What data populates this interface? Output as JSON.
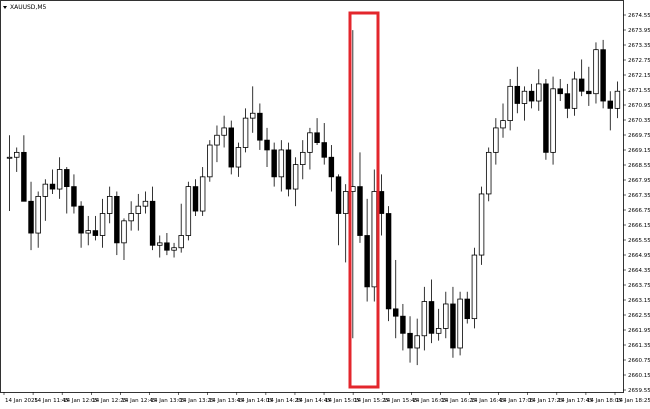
{
  "window": {
    "symbol_label": "XAUUSD,M5"
  },
  "chart_data": {
    "type": "candlestick",
    "title": "XAUUSD,M5",
    "ylim": [
      2659.0,
      2674.5
    ],
    "y_ticks": [
      "2674.55",
      "2673.95",
      "2673.35",
      "2672.75",
      "2672.15",
      "2671.55",
      "2670.95",
      "2670.35",
      "2669.75",
      "2669.15",
      "2668.55",
      "2667.95",
      "2667.35",
      "2666.75",
      "2666.15",
      "2665.55",
      "2664.95",
      "2664.35",
      "2663.75",
      "2663.15",
      "2662.55",
      "2661.95",
      "2661.35",
      "2660.75",
      "2660.15",
      "2659.55"
    ],
    "x_ticks": [
      "14 Jan 2025",
      "14 Jan 11:45",
      "14 Jan 12:05",
      "14 Jan 12:25",
      "14 Jan 12:45",
      "14 Jan 13:05",
      "14 Jan 13:25",
      "14 Jan 13:45",
      "14 Jan 14:05",
      "14 Jan 14:25",
      "14 Jan 14:45",
      "14 Jan 15:05",
      "14 Jan 15:25",
      "14 Jan 15:45",
      "14 Jan 16:05",
      "14 Jan 16:25",
      "14 Jan 16:45",
      "14 Jan 17:05",
      "14 Jan 17:25",
      "14 Jan 17:45",
      "14 Jan 18:05",
      "14 Jan 18:25"
    ],
    "candles": [
      [
        2668.6,
        2669.5,
        2666.4,
        2668.6
      ],
      [
        2668.6,
        2669.0,
        2668.0,
        2668.8
      ],
      [
        2668.8,
        2669.5,
        2666.8,
        2666.8
      ],
      [
        2666.8,
        2667.6,
        2664.8,
        2665.5
      ],
      [
        2665.5,
        2667.2,
        2664.9,
        2667.0
      ],
      [
        2667.0,
        2667.7,
        2666.0,
        2667.5
      ],
      [
        2667.5,
        2668.1,
        2667.1,
        2667.3
      ],
      [
        2667.3,
        2668.6,
        2666.9,
        2668.1
      ],
      [
        2668.1,
        2668.2,
        2666.3,
        2667.4
      ],
      [
        2667.4,
        2667.9,
        2666.3,
        2666.6
      ],
      [
        2666.6,
        2666.8,
        2664.9,
        2665.5
      ],
      [
        2665.5,
        2666.2,
        2665.0,
        2665.6
      ],
      [
        2665.6,
        2666.2,
        2665.2,
        2665.4
      ],
      [
        2665.4,
        2666.9,
        2664.9,
        2666.3
      ],
      [
        2666.3,
        2667.4,
        2665.9,
        2667.0
      ],
      [
        2667.0,
        2667.2,
        2664.6,
        2665.1
      ],
      [
        2665.1,
        2666.1,
        2664.4,
        2666.0
      ],
      [
        2666.0,
        2666.8,
        2665.6,
        2666.3
      ],
      [
        2666.3,
        2667.1,
        2665.6,
        2666.6
      ],
      [
        2666.6,
        2667.2,
        2666.3,
        2666.8
      ],
      [
        2666.8,
        2667.4,
        2664.8,
        2665.0
      ],
      [
        2665.0,
        2665.4,
        2664.5,
        2665.1
      ],
      [
        2665.1,
        2665.5,
        2664.6,
        2664.8
      ],
      [
        2664.8,
        2665.1,
        2664.5,
        2664.9
      ],
      [
        2664.9,
        2666.7,
        2664.7,
        2665.4
      ],
      [
        2665.4,
        2667.6,
        2665.2,
        2667.4
      ],
      [
        2667.4,
        2667.7,
        2666.2,
        2666.4
      ],
      [
        2666.4,
        2668.2,
        2666.2,
        2667.8
      ],
      [
        2667.8,
        2669.3,
        2667.6,
        2669.1
      ],
      [
        2669.1,
        2669.9,
        2668.4,
        2669.5
      ],
      [
        2669.5,
        2670.3,
        2669.0,
        2669.8
      ],
      [
        2669.8,
        2670.1,
        2667.9,
        2668.2
      ],
      [
        2668.2,
        2669.2,
        2667.8,
        2669.0
      ],
      [
        2669.0,
        2670.6,
        2668.8,
        2670.2
      ],
      [
        2670.2,
        2671.5,
        2669.6,
        2670.4
      ],
      [
        2670.4,
        2670.8,
        2668.9,
        2669.3
      ],
      [
        2669.3,
        2669.8,
        2668.2,
        2668.9
      ],
      [
        2668.9,
        2669.2,
        2667.4,
        2667.8
      ],
      [
        2667.8,
        2669.3,
        2667.2,
        2668.9
      ],
      [
        2668.9,
        2669.2,
        2667.0,
        2667.3
      ],
      [
        2667.3,
        2668.6,
        2666.6,
        2668.3
      ],
      [
        2668.3,
        2669.3,
        2667.7,
        2668.8
      ],
      [
        2668.8,
        2669.8,
        2668.1,
        2669.6
      ],
      [
        2669.6,
        2670.2,
        2669.1,
        2669.2
      ],
      [
        2669.2,
        2670.0,
        2668.3,
        2668.6
      ],
      [
        2668.6,
        2669.1,
        2667.2,
        2667.8
      ],
      [
        2667.8,
        2667.9,
        2665.0,
        2666.3
      ],
      [
        2666.3,
        2667.5,
        2664.3,
        2667.2
      ],
      [
        2667.2,
        2673.8,
        2661.2,
        2667.4
      ],
      [
        2667.4,
        2668.8,
        2665.1,
        2665.4
      ],
      [
        2665.4,
        2666.9,
        2662.7,
        2663.3
      ],
      [
        2663.3,
        2668.1,
        2662.7,
        2667.2
      ],
      [
        2667.2,
        2667.9,
        2665.4,
        2666.3
      ],
      [
        2666.3,
        2666.6,
        2661.9,
        2662.4
      ],
      [
        2662.4,
        2664.4,
        2661.2,
        2662.1
      ],
      [
        2662.1,
        2662.6,
        2660.7,
        2661.4
      ],
      [
        2661.4,
        2662.1,
        2660.2,
        2660.8
      ],
      [
        2660.8,
        2662.0,
        2660.1,
        2661.3
      ],
      [
        2661.3,
        2663.3,
        2660.7,
        2662.7
      ],
      [
        2662.7,
        2663.6,
        2661.0,
        2661.4
      ],
      [
        2661.4,
        2662.4,
        2661.1,
        2661.6
      ],
      [
        2661.6,
        2663.1,
        2661.2,
        2662.6
      ],
      [
        2662.6,
        2663.3,
        2660.4,
        2660.8
      ],
      [
        2660.8,
        2663.1,
        2660.5,
        2662.8
      ],
      [
        2662.8,
        2663.1,
        2661.8,
        2662.0
      ],
      [
        2662.0,
        2664.9,
        2661.6,
        2664.6
      ],
      [
        2664.6,
        2667.4,
        2664.2,
        2667.1
      ],
      [
        2667.1,
        2669.0,
        2666.8,
        2668.8
      ],
      [
        2668.8,
        2670.2,
        2668.3,
        2669.8
      ],
      [
        2669.8,
        2670.8,
        2669.4,
        2670.1
      ],
      [
        2670.1,
        2671.8,
        2669.7,
        2671.5
      ],
      [
        2671.5,
        2672.3,
        2670.4,
        2670.8
      ],
      [
        2670.8,
        2671.5,
        2670.1,
        2671.3
      ],
      [
        2671.3,
        2671.6,
        2670.6,
        2670.9
      ],
      [
        2670.9,
        2672.2,
        2670.5,
        2671.6
      ],
      [
        2671.6,
        2671.8,
        2668.5,
        2668.8
      ],
      [
        2668.8,
        2671.9,
        2668.3,
        2671.4
      ],
      [
        2671.4,
        2671.8,
        2670.9,
        2671.2
      ],
      [
        2671.2,
        2671.6,
        2670.2,
        2670.6
      ],
      [
        2670.6,
        2672.1,
        2670.3,
        2671.8
      ],
      [
        2671.8,
        2672.6,
        2671.1,
        2671.3
      ],
      [
        2671.3,
        2672.3,
        2670.7,
        2671.2
      ],
      [
        2671.2,
        2673.3,
        2670.8,
        2673.0
      ],
      [
        2673.0,
        2673.4,
        2670.6,
        2670.9
      ],
      [
        2670.9,
        2671.3,
        2669.7,
        2670.6
      ],
      [
        2670.6,
        2671.7,
        2670.2,
        2671.3
      ]
    ]
  }
}
